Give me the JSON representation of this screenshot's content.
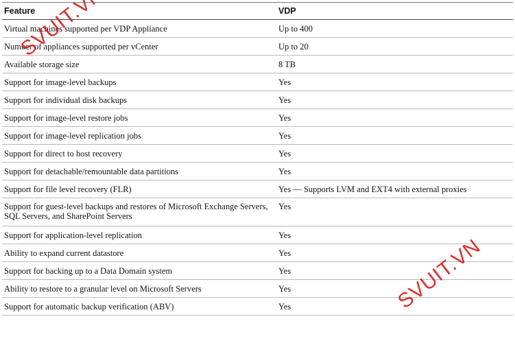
{
  "table": {
    "headers": [
      "Feature",
      "VDP"
    ],
    "rows": [
      {
        "feature": "Virtual machines supported per VDP Appliance",
        "vdp": "Up to 400"
      },
      {
        "feature": "Number of appliances supported per vCenter",
        "vdp": "Up to 20"
      },
      {
        "feature": "Available storage size",
        "vdp": "8 TB"
      },
      {
        "feature": "Support for image-level backups",
        "vdp": "Yes"
      },
      {
        "feature": "Support for individual disk backups",
        "vdp": "Yes"
      },
      {
        "feature": "Support for image-level restore jobs",
        "vdp": "Yes"
      },
      {
        "feature": "Support for image-level replication jobs",
        "vdp": "Yes"
      },
      {
        "feature": "Support for direct to host recovery",
        "vdp": "Yes"
      },
      {
        "feature": "Support for detachable/remountable data partitions",
        "vdp": "Yes"
      },
      {
        "feature": "Support for file level recovery (FLR)",
        "vdp": "Yes — Supports LVM and EXT4 with external proxies"
      },
      {
        "feature": "Support for guest-level backups and restores of Microsoft Exchange Servers, SQL Servers, and SharePoint Servers",
        "vdp": "Yes"
      },
      {
        "feature": "Support for application-level replication",
        "vdp": "Yes"
      },
      {
        "feature": "Ability to expand current datastore",
        "vdp": "Yes"
      },
      {
        "feature": "Support for backing up to a Data Domain system",
        "vdp": "Yes"
      },
      {
        "feature": "Ability to restore to a granular level on Microsoft Servers",
        "vdp": "Yes"
      },
      {
        "feature": "Support for automatic backup verification (ABV)",
        "vdp": "Yes"
      }
    ]
  },
  "watermarks": [
    "SVUIT.VN",
    "SVUIT.VN"
  ],
  "colors": {
    "watermark": "#d62020"
  }
}
